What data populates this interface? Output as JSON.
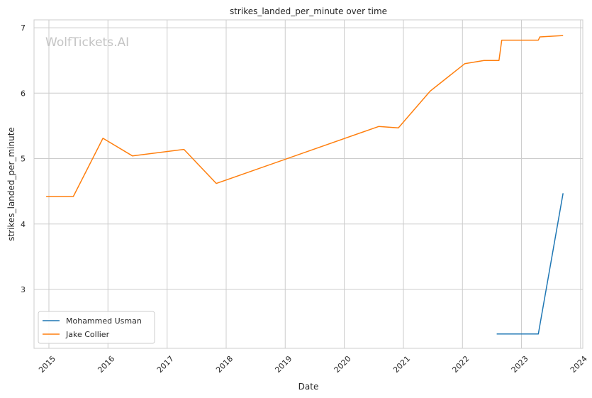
{
  "chart_data": {
    "type": "line",
    "title": "strikes_landed_per_minute over time",
    "xlabel": "Date",
    "ylabel": "strikes_landed_per_minute",
    "watermark": "WolfTickets.AI",
    "x_ticks": [
      "2015",
      "2016",
      "2017",
      "2018",
      "2019",
      "2020",
      "2021",
      "2022",
      "2023",
      "2024"
    ],
    "y_ticks": [
      3,
      4,
      5,
      6,
      7
    ],
    "xlim": [
      "2014-10-01",
      "2024-01-15"
    ],
    "ylim": [
      2.1,
      7.12
    ],
    "grid": true,
    "legend_position": "lower-left",
    "series": [
      {
        "name": "Mohammed Usman",
        "color": "#1f77b4",
        "points": [
          {
            "x": "2022-08-01",
            "y": 2.32
          },
          {
            "x": "2023-04-15",
            "y": 2.32
          },
          {
            "x": "2023-09-15",
            "y": 4.47
          }
        ]
      },
      {
        "name": "Jake Collier",
        "color": "#ff7f0e",
        "points": [
          {
            "x": "2014-12-15",
            "y": 4.42
          },
          {
            "x": "2015-06-01",
            "y": 4.42
          },
          {
            "x": "2015-12-01",
            "y": 5.31
          },
          {
            "x": "2016-06-01",
            "y": 5.04
          },
          {
            "x": "2017-04-15",
            "y": 5.14
          },
          {
            "x": "2017-11-01",
            "y": 4.62
          },
          {
            "x": "2020-08-01",
            "y": 5.49
          },
          {
            "x": "2020-12-01",
            "y": 5.47
          },
          {
            "x": "2021-06-15",
            "y": 6.03
          },
          {
            "x": "2022-01-15",
            "y": 6.45
          },
          {
            "x": "2022-05-15",
            "y": 6.5
          },
          {
            "x": "2022-08-15",
            "y": 6.5
          },
          {
            "x": "2022-09-01",
            "y": 6.81
          },
          {
            "x": "2023-04-15",
            "y": 6.81
          },
          {
            "x": "2023-04-25",
            "y": 6.86
          },
          {
            "x": "2023-09-15",
            "y": 6.88
          }
        ]
      }
    ]
  }
}
